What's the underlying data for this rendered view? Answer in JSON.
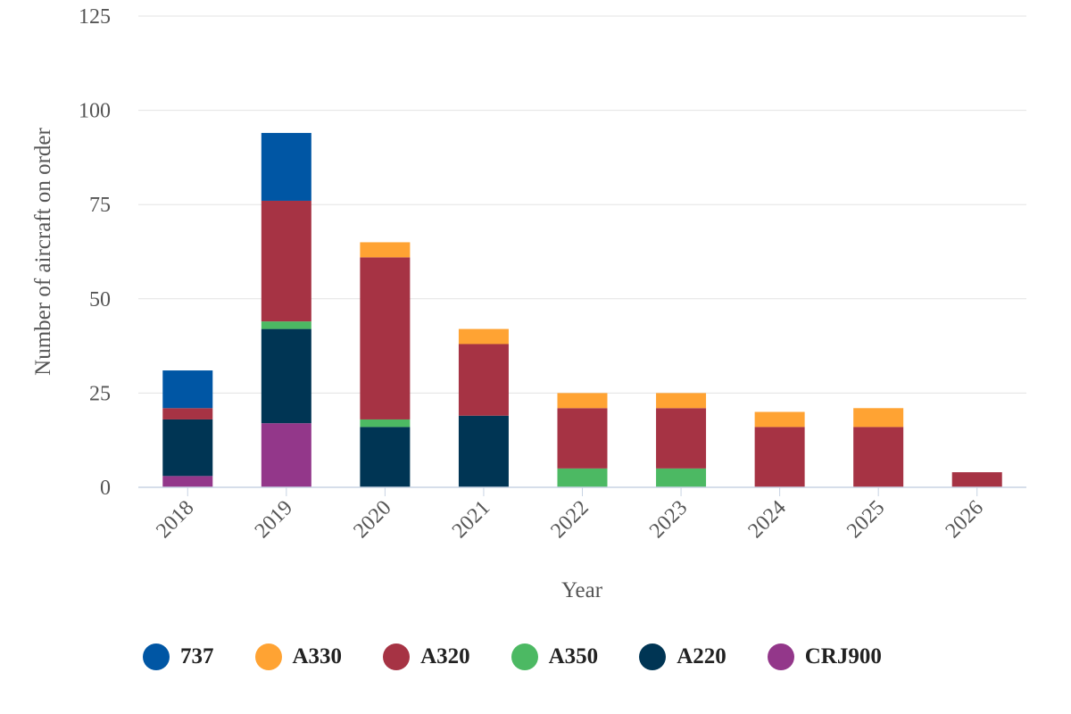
{
  "chart_data": {
    "type": "bar",
    "stacked": true,
    "categories": [
      "2018",
      "2019",
      "2020",
      "2021",
      "2022",
      "2023",
      "2024",
      "2025",
      "2026"
    ],
    "series": [
      {
        "name": "CRJ900",
        "color": "#93378A",
        "values": [
          3,
          17,
          0,
          0,
          0,
          0,
          0,
          0,
          0
        ]
      },
      {
        "name": "A220",
        "color": "#003554",
        "values": [
          15,
          25,
          16,
          19,
          0,
          0,
          0,
          0,
          0
        ]
      },
      {
        "name": "A350",
        "color": "#4CB963",
        "values": [
          0,
          2,
          2,
          0,
          5,
          5,
          0,
          0,
          0
        ]
      },
      {
        "name": "A320",
        "color": "#A63344",
        "values": [
          3,
          32,
          43,
          19,
          16,
          16,
          16,
          16,
          4
        ]
      },
      {
        "name": "A330",
        "color": "#FFA333",
        "values": [
          0,
          0,
          4,
          4,
          4,
          4,
          4,
          5,
          0
        ]
      },
      {
        "name": "737",
        "color": "#0056A4",
        "values": [
          10,
          18,
          0,
          0,
          0,
          0,
          0,
          0,
          0
        ]
      }
    ],
    "legend_order": [
      "737",
      "A330",
      "A320",
      "A350",
      "A220",
      "CRJ900"
    ],
    "xlabel": "Year",
    "ylabel": "Number of aircraft on order",
    "ylim": [
      0,
      125
    ],
    "yticks": [
      0,
      25,
      50,
      75,
      100,
      125
    ],
    "grid": true,
    "legend_position": "bottom-left"
  }
}
